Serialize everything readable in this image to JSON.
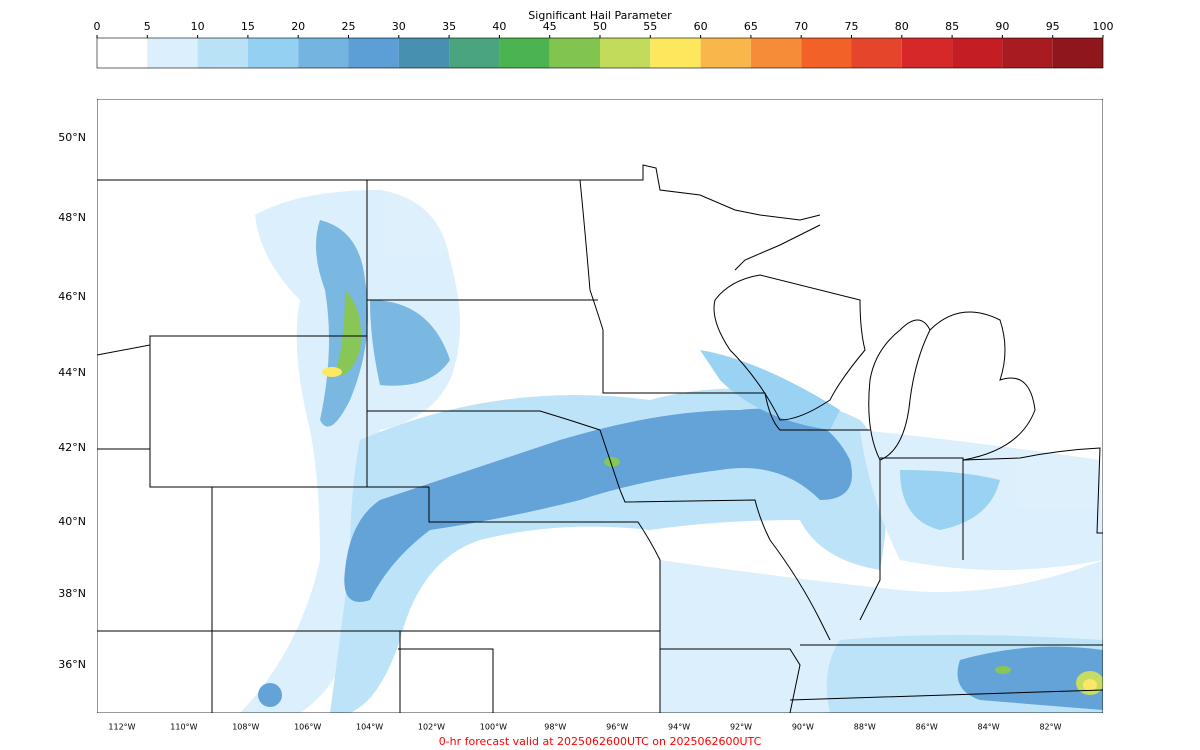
{
  "colorbar": {
    "title": "Significant Hail Parameter",
    "ticks": [
      0,
      5,
      10,
      15,
      20,
      25,
      30,
      35,
      40,
      45,
      50,
      55,
      60,
      65,
      70,
      75,
      80,
      85,
      90,
      95,
      100
    ],
    "colors": [
      "#ffffff",
      "#dbeffc",
      "#b9e2f7",
      "#94d0f2",
      "#73b4e0",
      "#5b9fd6",
      "#4890b0",
      "#4aa480",
      "#4bb34f",
      "#82c450",
      "#c3db5a",
      "#fde75d",
      "#f9b64b",
      "#f68c37",
      "#f26127",
      "#e5452a",
      "#d72829",
      "#c41e24",
      "#a81c21",
      "#8f161c"
    ]
  },
  "map": {
    "lat_labels": [
      "50°N",
      "48°N",
      "46°N",
      "44°N",
      "42°N",
      "40°N",
      "38°N",
      "36°N"
    ],
    "lon_labels": [
      "112°W",
      "110°W",
      "108°W",
      "106°W",
      "104°W",
      "102°W",
      "100°W",
      "98°W",
      "96°W",
      "94°W",
      "92°W",
      "90°W",
      "88°W",
      "86°W",
      "84°W",
      "82°W"
    ]
  },
  "footer": "0-hr forecast valid at 2025062600UTC on 2025062600UTC"
}
